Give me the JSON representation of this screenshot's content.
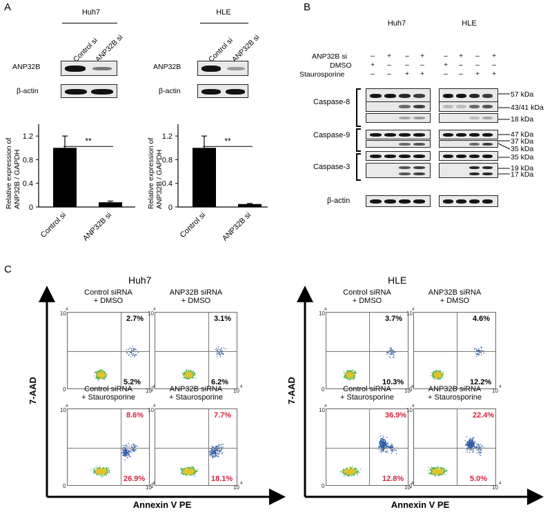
{
  "panels": {
    "a": "A",
    "b": "B",
    "c": "C"
  },
  "panelA": {
    "cell_lines": [
      "Huh7",
      "HLE"
    ],
    "lanes": [
      "Control si",
      "ANP32B si"
    ],
    "row_labels": [
      "ANP32B",
      "β-actin"
    ],
    "ylabel": "Relative expression of\nANP32B / GAPDH",
    "significance": "**",
    "yticks": [
      "0",
      "0.4",
      "0.8",
      "1.2"
    ]
  },
  "chart_data": [
    {
      "type": "bar",
      "title": "Huh7",
      "categories": [
        "Control si",
        "ANP32B si"
      ],
      "values": [
        1.0,
        0.08
      ],
      "errors": [
        0.2,
        0.02
      ],
      "ylabel": "Relative expression of ANP32B / GAPDH",
      "ylim": [
        0,
        1.4
      ],
      "yticks": [
        0,
        0.4,
        0.8,
        1.2
      ],
      "annotation": "**"
    },
    {
      "type": "bar",
      "title": "HLE",
      "categories": [
        "Control si",
        "ANP32B si"
      ],
      "values": [
        1.0,
        0.05
      ],
      "errors": [
        0.2,
        0.01
      ],
      "ylabel": "Relative expression of ANP32B / GAPDH",
      "ylim": [
        0,
        1.4
      ],
      "yticks": [
        0,
        0.4,
        0.8,
        1.2
      ],
      "annotation": "**"
    }
  ],
  "panelB": {
    "cell_lines": [
      "Huh7",
      "HLE"
    ],
    "treatments": [
      "ANP32B si",
      "DMSO",
      "Staurosporine"
    ],
    "lane_signs": [
      [
        "–",
        "+",
        "–",
        "+"
      ],
      [
        "+",
        "–",
        "–",
        "–"
      ],
      [
        "–",
        "–",
        "+",
        "+"
      ]
    ],
    "groups": [
      "Caspase-8",
      "Caspase-9",
      "Caspase-3"
    ],
    "actin": "β-actin",
    "kda": [
      "57 kDa",
      "43/41 kDa",
      "18 kDa",
      "47 kDa",
      "37 kDa",
      "35 kDa",
      "35 kDa",
      "19 kDa",
      "17 kDa"
    ]
  },
  "panelC": {
    "cell_lines": [
      "Huh7",
      "HLE"
    ],
    "y_axis": "7-AAD",
    "x_axis": "Annexin V PE",
    "tick_zero": "0",
    "tick_ten": "10",
    "tick_exp": "4",
    "conditions": [
      [
        "Control siRNA",
        "+ DMSO"
      ],
      [
        "ANP32B siRNA",
        "+ DMSO"
      ],
      [
        "Control siRNA",
        "+ Staurosporine"
      ],
      [
        "ANP32B siRNA",
        "+ Staurosporine"
      ]
    ],
    "huh7": {
      "upper": [
        "2.7%",
        "3.1%",
        "8.6%",
        "7.7%"
      ],
      "lower": [
        "5.2%",
        "6.2%",
        "26.9%",
        "18.1%"
      ]
    },
    "hle": {
      "upper": [
        "3.7%",
        "4.6%",
        "36.9%",
        "22.4%"
      ],
      "lower": [
        "10.3%",
        "12.2%",
        "12.8%",
        "5.0%"
      ]
    }
  },
  "colors": {
    "red": "#d4213d",
    "bar": "#000000"
  }
}
